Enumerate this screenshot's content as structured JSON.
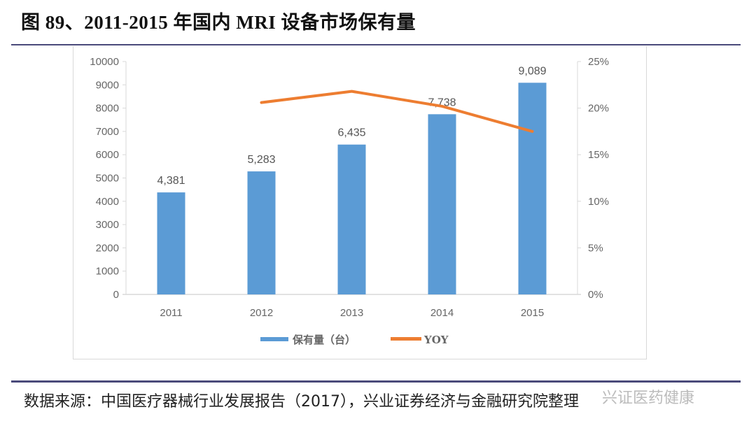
{
  "title": "图 89、2011-2015 年国内 MRI 设备市场保有量",
  "source": "数据来源：中国医疗器械行业发展报告（2017），兴业证券经济与金融研究院整理",
  "watermark": "兴证医药健康",
  "chart_data": {
    "type": "bar",
    "title": "图 89、2011-2015 年国内 MRI 设备市场保有量",
    "categories": [
      "2011",
      "2012",
      "2013",
      "2014",
      "2015"
    ],
    "series": [
      {
        "name": "保有量（台）",
        "type": "bar",
        "axis": "left",
        "color": "#5b9bd5",
        "values": [
          4381,
          5283,
          6435,
          7738,
          9089
        ],
        "labels": [
          "4,381",
          "5,283",
          "6,435",
          "7,738",
          "9,089"
        ]
      },
      {
        "name": "YOY",
        "type": "line",
        "axis": "right",
        "color": "#ed7d31",
        "values": [
          null,
          0.206,
          0.218,
          0.202,
          0.175
        ]
      }
    ],
    "y_left": {
      "min": 0,
      "max": 10000,
      "step": 1000,
      "ticks": [
        "0",
        "1000",
        "2000",
        "3000",
        "4000",
        "5000",
        "6000",
        "7000",
        "8000",
        "9000",
        "10000"
      ]
    },
    "y_right": {
      "min": 0,
      "max": 0.25,
      "step": 0.05,
      "ticks": [
        "0%",
        "5%",
        "10%",
        "15%",
        "20%",
        "25%"
      ]
    },
    "xlabel": "",
    "ylabel": "",
    "grid": false,
    "legend": "bottom"
  }
}
